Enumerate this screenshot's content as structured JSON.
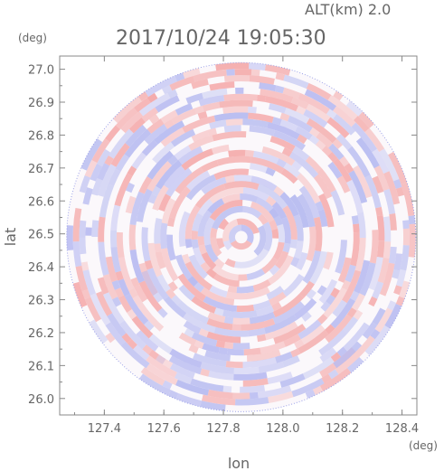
{
  "chart_data": {
    "type": "heatmap",
    "altitude_label": "ALT(km)  2.0",
    "timestamp": "2017/10/24 19:05:30",
    "xlabel": "lon",
    "ylabel": "lat",
    "x_unit": "(deg)",
    "y_unit": "(deg)",
    "xlim": [
      127.25,
      128.45
    ],
    "ylim": [
      25.95,
      27.04
    ],
    "x_ticks": [
      "127.4",
      "127.6",
      "127.8",
      "128.0",
      "128.2",
      "128.4"
    ],
    "y_ticks": [
      "26.0",
      "26.1",
      "26.2",
      "26.3",
      "26.4",
      "26.5",
      "26.6",
      "26.7",
      "26.8",
      "26.9",
      "27.0"
    ],
    "radar_center": {
      "lon": 127.86,
      "lat": 26.49
    },
    "radar_radius_deg_lat": 0.53,
    "colors": {
      "positive": "#f4a8a8",
      "negative": "#b4b8f0",
      "axis": "#888888"
    }
  }
}
